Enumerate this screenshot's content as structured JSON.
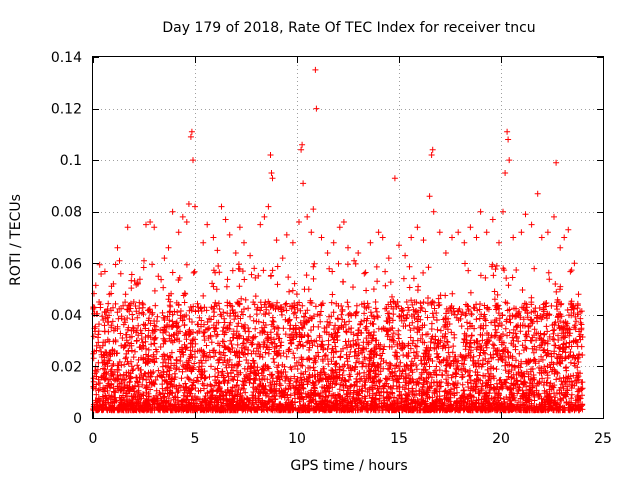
{
  "chart_data": {
    "type": "scatter",
    "title": "Day 179 of 2018, Rate Of TEC Index for receiver tncu",
    "xlabel": "GPS time / hours",
    "ylabel": "ROTI / TECUs",
    "xlim": [
      0,
      25
    ],
    "ylim": [
      0,
      0.14
    ],
    "x_ticks": [
      0,
      5,
      10,
      15,
      20,
      25
    ],
    "x_tick_labels": [
      "0",
      "5",
      "10",
      "15",
      "20",
      "25"
    ],
    "y_ticks": [
      0,
      0.02,
      0.04,
      0.06,
      0.08,
      0.1,
      0.12,
      0.14
    ],
    "y_tick_labels": [
      "0",
      "0.02",
      "0.04",
      "0.06",
      "0.08",
      "0.1",
      "0.12",
      "0.14"
    ],
    "grid": true,
    "marker": "+",
    "color": "#ff0000",
    "series": [
      {
        "name": "ROTI",
        "points": [
          [
            0.3,
            0.045
          ],
          [
            0.5,
            0.038
          ],
          [
            0.8,
            0.048
          ],
          [
            1.0,
            0.052
          ],
          [
            1.2,
            0.066
          ],
          [
            1.3,
            0.061
          ],
          [
            1.6,
            0.048
          ],
          [
            1.7,
            0.074
          ],
          [
            2.0,
            0.045
          ],
          [
            2.2,
            0.052
          ],
          [
            2.5,
            0.061
          ],
          [
            2.6,
            0.075
          ],
          [
            2.8,
            0.076
          ],
          [
            3.0,
            0.074
          ],
          [
            3.2,
            0.055
          ],
          [
            3.5,
            0.062
          ],
          [
            3.7,
            0.066
          ],
          [
            3.9,
            0.08
          ],
          [
            4.2,
            0.072
          ],
          [
            4.4,
            0.078
          ],
          [
            4.6,
            0.076
          ],
          [
            4.7,
            0.083
          ],
          [
            4.8,
            0.109
          ],
          [
            4.85,
            0.111
          ],
          [
            4.9,
            0.1
          ],
          [
            5.0,
            0.082
          ],
          [
            5.4,
            0.068
          ],
          [
            5.6,
            0.075
          ],
          [
            5.9,
            0.07
          ],
          [
            6.1,
            0.065
          ],
          [
            6.3,
            0.082
          ],
          [
            6.5,
            0.077
          ],
          [
            6.7,
            0.071
          ],
          [
            7.0,
            0.064
          ],
          [
            7.2,
            0.074
          ],
          [
            7.4,
            0.068
          ],
          [
            7.7,
            0.063
          ],
          [
            7.9,
            0.058
          ],
          [
            8.2,
            0.075
          ],
          [
            8.4,
            0.078
          ],
          [
            8.6,
            0.082
          ],
          [
            8.7,
            0.102
          ],
          [
            8.75,
            0.095
          ],
          [
            8.8,
            0.093
          ],
          [
            9.0,
            0.069
          ],
          [
            9.3,
            0.062
          ],
          [
            9.5,
            0.071
          ],
          [
            9.8,
            0.068
          ],
          [
            10.1,
            0.076
          ],
          [
            10.2,
            0.104
          ],
          [
            10.25,
            0.106
          ],
          [
            10.3,
            0.091
          ],
          [
            10.5,
            0.078
          ],
          [
            10.7,
            0.072
          ],
          [
            10.8,
            0.081
          ],
          [
            10.9,
            0.135
          ],
          [
            10.95,
            0.12
          ],
          [
            11.2,
            0.07
          ],
          [
            11.5,
            0.064
          ],
          [
            11.8,
            0.068
          ],
          [
            12.1,
            0.074
          ],
          [
            12.3,
            0.076
          ],
          [
            12.5,
            0.066
          ],
          [
            12.8,
            0.061
          ],
          [
            13.0,
            0.064
          ],
          [
            13.3,
            0.056
          ],
          [
            13.6,
            0.068
          ],
          [
            14.0,
            0.072
          ],
          [
            14.2,
            0.07
          ],
          [
            14.5,
            0.062
          ],
          [
            14.8,
            0.093
          ],
          [
            15.0,
            0.067
          ],
          [
            15.3,
            0.063
          ],
          [
            15.6,
            0.07
          ],
          [
            15.9,
            0.074
          ],
          [
            16.2,
            0.069
          ],
          [
            16.5,
            0.086
          ],
          [
            16.6,
            0.102
          ],
          [
            16.65,
            0.104
          ],
          [
            16.7,
            0.08
          ],
          [
            17.0,
            0.072
          ],
          [
            17.3,
            0.064
          ],
          [
            17.6,
            0.07
          ],
          [
            17.9,
            0.072
          ],
          [
            18.2,
            0.068
          ],
          [
            18.5,
            0.074
          ],
          [
            18.8,
            0.07
          ],
          [
            19.0,
            0.08
          ],
          [
            19.3,
            0.072
          ],
          [
            19.6,
            0.077
          ],
          [
            19.9,
            0.068
          ],
          [
            20.1,
            0.08
          ],
          [
            20.2,
            0.095
          ],
          [
            20.3,
            0.111
          ],
          [
            20.35,
            0.108
          ],
          [
            20.4,
            0.1
          ],
          [
            20.6,
            0.07
          ],
          [
            21.0,
            0.072
          ],
          [
            21.2,
            0.079
          ],
          [
            21.5,
            0.075
          ],
          [
            21.8,
            0.087
          ],
          [
            22.0,
            0.07
          ],
          [
            22.3,
            0.072
          ],
          [
            22.6,
            0.078
          ],
          [
            22.7,
            0.099
          ],
          [
            22.9,
            0.066
          ],
          [
            23.1,
            0.07
          ],
          [
            23.3,
            0.073
          ],
          [
            23.6,
            0.06
          ],
          [
            23.8,
            0.048
          ]
        ]
      }
    ],
    "dense_band": {
      "x_range": [
        0,
        24
      ],
      "typical_min": 0.003,
      "typical_max": 0.045,
      "description_value_range": [
        0.003,
        0.06
      ]
    }
  }
}
